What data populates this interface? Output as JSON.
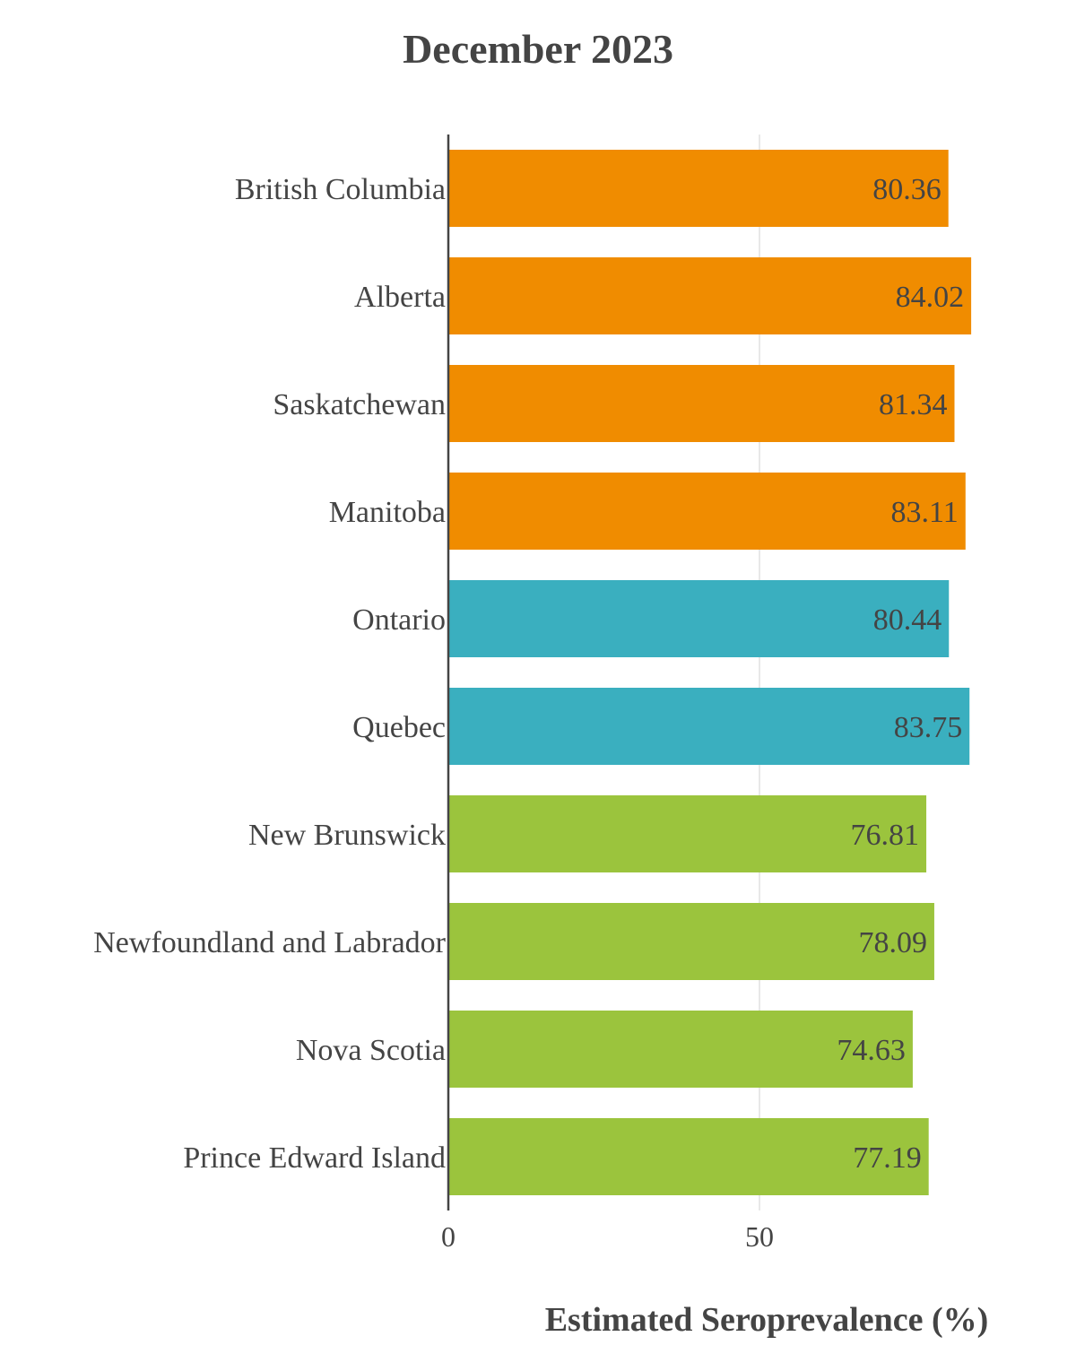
{
  "chart_data": {
    "type": "bar",
    "orientation": "horizontal",
    "title": "December 2023",
    "xlabel": "Estimated Seroprevalence (%)",
    "ylabel": "",
    "xlim": [
      0,
      100
    ],
    "xticks": [
      0,
      50
    ],
    "grid": true,
    "categories": [
      "British Columbia",
      "Alberta",
      "Saskatchewan",
      "Manitoba",
      "Ontario",
      "Quebec",
      "New Brunswick",
      "Newfoundland and Labrador",
      "Nova Scotia",
      "Prince Edward Island"
    ],
    "values": [
      80.36,
      84.02,
      81.34,
      83.11,
      80.44,
      83.75,
      76.81,
      78.09,
      74.63,
      77.19
    ],
    "value_labels": [
      "80.36",
      "84.02",
      "81.34",
      "83.11",
      "80.44",
      "83.75",
      "76.81",
      "78.09",
      "74.63",
      "77.19"
    ],
    "colors": [
      "#f08c00",
      "#f08c00",
      "#f08c00",
      "#f08c00",
      "#3aafbf",
      "#3aafbf",
      "#9bc43d",
      "#9bc43d",
      "#9bc43d",
      "#9bc43d"
    ]
  }
}
